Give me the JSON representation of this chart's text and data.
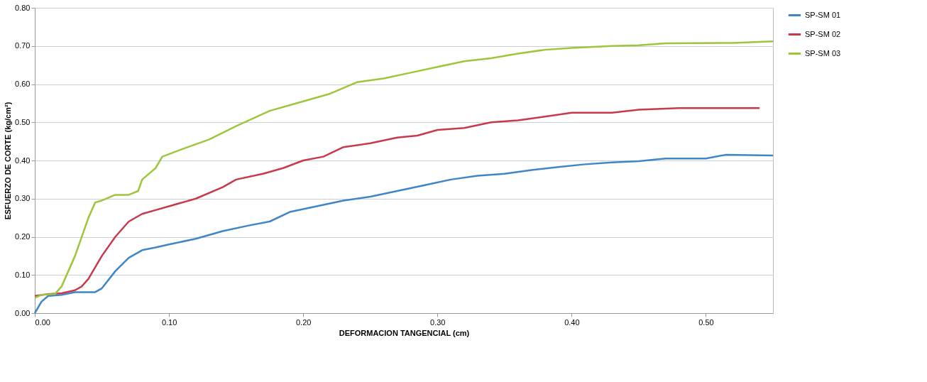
{
  "chart_data": {
    "type": "line",
    "xlabel": "DEFORMACION TANGENCIAL (cm)",
    "ylabel": "ESFUERZO DE CORTE (kg/cm²)",
    "xlim": [
      0,
      0.55
    ],
    "xticks": [
      {
        "value": 0,
        "label": "0.00"
      },
      {
        "value": 0.1,
        "label": "0.10"
      },
      {
        "value": 0.2,
        "label": "0.20"
      },
      {
        "value": 0.3,
        "label": "0.30"
      },
      {
        "value": 0.4,
        "label": "0.40"
      },
      {
        "value": 0.5,
        "label": "0.50"
      }
    ],
    "ylim": [
      0,
      0.8
    ],
    "yticks": [
      {
        "value": 0,
        "label": "0.00"
      },
      {
        "value": 0.1,
        "label": "0.10"
      },
      {
        "value": 0.2,
        "label": "0.20"
      },
      {
        "value": 0.3,
        "label": "0.30"
      },
      {
        "value": 0.4,
        "label": "0.40"
      },
      {
        "value": 0.5,
        "label": "0.50"
      },
      {
        "value": 0.6,
        "label": "0.60"
      },
      {
        "value": 0.7,
        "label": "0.70"
      },
      {
        "value": 0.8,
        "label": "0.80"
      }
    ],
    "grid": "y",
    "legend": "right",
    "marker": "none",
    "line_style": "solid",
    "series": [
      {
        "name": "SP-SM  01",
        "color": "#3f86c8",
        "x": [
          0,
          0.005,
          0.01,
          0.02,
          0.03,
          0.045,
          0.05,
          0.06,
          0.07,
          0.08,
          0.09,
          0.1,
          0.12,
          0.14,
          0.16,
          0.175,
          0.19,
          0.21,
          0.23,
          0.25,
          0.27,
          0.29,
          0.31,
          0.33,
          0.35,
          0.37,
          0.39,
          0.41,
          0.43,
          0.45,
          0.47,
          0.5,
          0.515,
          0.55
        ],
        "values": [
          0,
          0.03,
          0.045,
          0.048,
          0.055,
          0.055,
          0.065,
          0.11,
          0.145,
          0.165,
          0.172,
          0.18,
          0.195,
          0.215,
          0.23,
          0.24,
          0.265,
          0.28,
          0.295,
          0.305,
          0.32,
          0.335,
          0.35,
          0.36,
          0.365,
          0.375,
          0.383,
          0.39,
          0.395,
          0.398,
          0.405,
          0.405,
          0.415,
          0.413
        ]
      },
      {
        "name": "SP-SM  02",
        "color": "#c8394b",
        "x": [
          0,
          0.01,
          0.02,
          0.03,
          0.035,
          0.04,
          0.05,
          0.06,
          0.07,
          0.08,
          0.09,
          0.1,
          0.12,
          0.14,
          0.15,
          0.17,
          0.185,
          0.2,
          0.215,
          0.23,
          0.25,
          0.27,
          0.285,
          0.3,
          0.32,
          0.34,
          0.36,
          0.38,
          0.4,
          0.43,
          0.45,
          0.48,
          0.54
        ],
        "values": [
          0.045,
          0.05,
          0.052,
          0.06,
          0.07,
          0.09,
          0.15,
          0.2,
          0.24,
          0.26,
          0.27,
          0.28,
          0.3,
          0.33,
          0.35,
          0.365,
          0.38,
          0.4,
          0.41,
          0.435,
          0.445,
          0.46,
          0.465,
          0.48,
          0.485,
          0.5,
          0.505,
          0.515,
          0.525,
          0.525,
          0.533,
          0.537,
          0.537
        ]
      },
      {
        "name": "SP-SM 03",
        "color": "#9dc63b",
        "x": [
          0,
          0.005,
          0.015,
          0.02,
          0.03,
          0.04,
          0.045,
          0.05,
          0.06,
          0.07,
          0.077,
          0.08,
          0.09,
          0.095,
          0.11,
          0.13,
          0.15,
          0.175,
          0.2,
          0.22,
          0.23,
          0.24,
          0.26,
          0.28,
          0.3,
          0.32,
          0.34,
          0.36,
          0.38,
          0.4,
          0.43,
          0.45,
          0.47,
          0.52,
          0.55
        ],
        "values": [
          0.04,
          0.048,
          0.05,
          0.07,
          0.15,
          0.25,
          0.29,
          0.295,
          0.31,
          0.31,
          0.32,
          0.35,
          0.38,
          0.41,
          0.43,
          0.455,
          0.49,
          0.53,
          0.555,
          0.575,
          0.59,
          0.605,
          0.615,
          0.63,
          0.645,
          0.66,
          0.668,
          0.68,
          0.69,
          0.695,
          0.7,
          0.702,
          0.707,
          0.708,
          0.712
        ]
      }
    ]
  }
}
